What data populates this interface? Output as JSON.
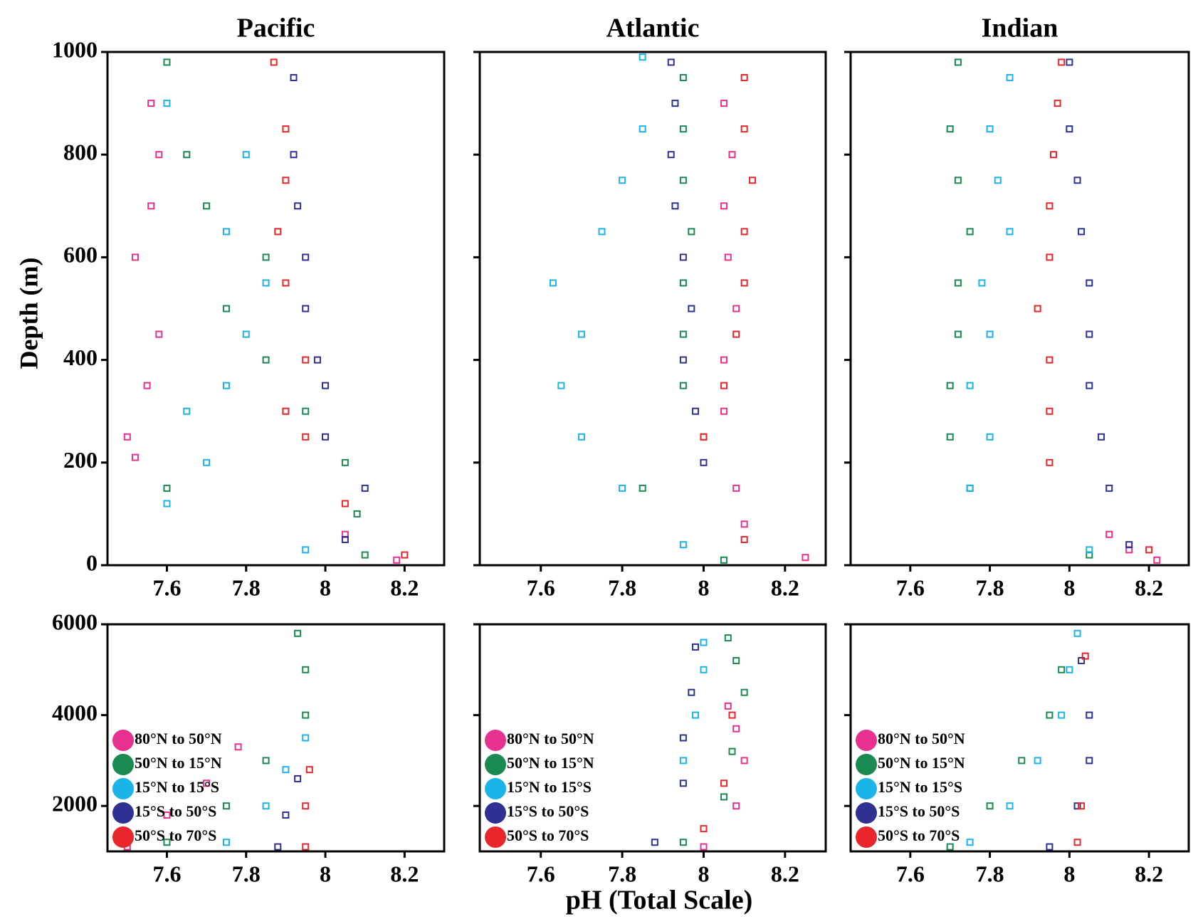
{
  "figure": {
    "xlabel": "pH (Total Scale)",
    "ylabel": "Depth (m)"
  },
  "chart_data": [
    {
      "type": "scatter",
      "title": "Pacific",
      "xlim": [
        7.45,
        8.3
      ],
      "xticks": [
        7.6,
        7.8,
        8,
        8.2
      ],
      "ylim": [
        1000,
        0
      ],
      "yticks": [
        0,
        200,
        400,
        600,
        800,
        1000
      ],
      "series": [
        {
          "color": "#e8318f",
          "x": [
            8.18,
            8.05,
            7.52,
            7.5,
            7.55,
            7.58,
            7.52,
            7.56,
            7.58,
            7.56
          ],
          "values": [
            10,
            60,
            210,
            250,
            350,
            450,
            600,
            700,
            800,
            900
          ]
        },
        {
          "color": "#1a8a50",
          "x": [
            8.1,
            8.08,
            7.6,
            8.05,
            7.95,
            7.85,
            7.75,
            7.85,
            7.7,
            7.65,
            7.6
          ],
          "values": [
            20,
            100,
            150,
            200,
            300,
            400,
            500,
            600,
            700,
            800,
            980
          ]
        },
        {
          "color": "#1ab4e8",
          "x": [
            7.95,
            7.6,
            7.7,
            7.65,
            7.75,
            7.8,
            7.85,
            7.75,
            7.8,
            7.6
          ],
          "values": [
            30,
            120,
            200,
            300,
            350,
            450,
            550,
            650,
            800,
            900
          ]
        },
        {
          "color": "#2e3192",
          "x": [
            8.05,
            8.1,
            8.0,
            8.0,
            7.98,
            7.95,
            7.95,
            7.93,
            7.92,
            7.92
          ],
          "values": [
            50,
            150,
            250,
            350,
            400,
            500,
            600,
            700,
            800,
            950
          ]
        },
        {
          "color": "#e8262c",
          "x": [
            8.2,
            8.05,
            7.95,
            7.9,
            7.95,
            7.9,
            7.88,
            7.9,
            7.9,
            7.87
          ],
          "values": [
            20,
            120,
            250,
            300,
            400,
            550,
            650,
            750,
            850,
            980
          ]
        }
      ]
    },
    {
      "type": "scatter",
      "title": "Atlantic",
      "xlim": [
        7.45,
        8.3
      ],
      "xticks": [
        7.6,
        7.8,
        8,
        8.2
      ],
      "ylim": [
        1000,
        0
      ],
      "yticks": [
        0,
        200,
        400,
        600,
        800,
        1000
      ],
      "series": [
        {
          "color": "#e8318f",
          "x": [
            8.25,
            8.1,
            8.08,
            8.05,
            8.05,
            8.08,
            8.06,
            8.05,
            8.07,
            8.05
          ],
          "values": [
            15,
            80,
            150,
            300,
            400,
            500,
            600,
            700,
            800,
            900
          ]
        },
        {
          "color": "#1a8a50",
          "x": [
            8.05,
            7.85,
            8.0,
            7.95,
            7.95,
            7.95,
            7.97,
            7.95,
            7.95,
            7.95
          ],
          "values": [
            10,
            150,
            250,
            350,
            450,
            550,
            650,
            750,
            850,
            950
          ]
        },
        {
          "color": "#1ab4e8",
          "x": [
            7.95,
            7.8,
            7.7,
            7.65,
            7.7,
            7.63,
            7.75,
            7.8,
            7.85,
            7.85
          ],
          "values": [
            40,
            150,
            250,
            350,
            450,
            550,
            650,
            750,
            850,
            990
          ]
        },
        {
          "color": "#2e3192",
          "x": [
            8.0,
            7.98,
            7.95,
            7.97,
            7.95,
            7.93,
            7.92,
            7.93,
            7.92
          ],
          "values": [
            200,
            300,
            400,
            500,
            600,
            700,
            800,
            900,
            980
          ]
        },
        {
          "color": "#e8262c",
          "x": [
            8.1,
            8.0,
            8.05,
            8.08,
            8.1,
            8.1,
            8.12,
            8.1,
            8.1
          ],
          "values": [
            50,
            250,
            350,
            450,
            550,
            650,
            750,
            850,
            950
          ]
        }
      ]
    },
    {
      "type": "scatter",
      "title": "Indian",
      "xlim": [
        7.45,
        8.3
      ],
      "xticks": [
        7.6,
        7.8,
        8,
        8.2
      ],
      "ylim": [
        1000,
        0
      ],
      "yticks": [
        0,
        200,
        400,
        600,
        800,
        1000
      ],
      "series": [
        {
          "color": "#e8318f",
          "x": [
            8.22,
            8.15,
            8.1
          ],
          "values": [
            10,
            30,
            60
          ]
        },
        {
          "color": "#1a8a50",
          "x": [
            8.05,
            7.75,
            7.7,
            7.7,
            7.72,
            7.72,
            7.75,
            7.72,
            7.7,
            7.72
          ],
          "values": [
            20,
            150,
            250,
            350,
            450,
            550,
            650,
            750,
            850,
            980
          ]
        },
        {
          "color": "#1ab4e8",
          "x": [
            8.05,
            7.75,
            7.8,
            7.75,
            7.8,
            7.78,
            7.85,
            7.82,
            7.8,
            7.85
          ],
          "values": [
            30,
            150,
            250,
            350,
            450,
            550,
            650,
            750,
            850,
            950
          ]
        },
        {
          "color": "#2e3192",
          "x": [
            8.15,
            8.1,
            8.08,
            8.05,
            8.05,
            8.05,
            8.03,
            8.02,
            8.0,
            8.0
          ],
          "values": [
            40,
            150,
            250,
            350,
            450,
            550,
            650,
            750,
            850,
            980
          ]
        },
        {
          "color": "#e8262c",
          "x": [
            8.2,
            7.95,
            7.95,
            7.95,
            7.92,
            7.95,
            7.95,
            7.96,
            7.97,
            7.98
          ],
          "values": [
            30,
            200,
            300,
            400,
            500,
            600,
            700,
            800,
            900,
            980
          ]
        }
      ]
    },
    {
      "type": "scatter",
      "xlim": [
        7.45,
        8.3
      ],
      "xticks": [
        7.6,
        7.8,
        8,
        8.2
      ],
      "ylim": [
        6000,
        1000
      ],
      "yticks": [
        2000,
        4000,
        6000
      ],
      "legend": "lower-left",
      "series": [
        {
          "name": "80°N to 50°N",
          "color": "#e8318f",
          "x": [
            7.5,
            7.6,
            7.7,
            7.78
          ],
          "values": [
            1100,
            1800,
            2500,
            3300
          ]
        },
        {
          "name": "50°N to 15°N",
          "color": "#1a8a50",
          "x": [
            7.6,
            7.75,
            7.85,
            7.95,
            7.95,
            7.93
          ],
          "values": [
            1200,
            2000,
            3000,
            4000,
            5000,
            5800
          ]
        },
        {
          "name": "15°N to 15°S",
          "color": "#1ab4e8",
          "x": [
            7.75,
            7.85,
            7.9,
            7.95
          ],
          "values": [
            1200,
            2000,
            2800,
            3500
          ]
        },
        {
          "name": "15°S to 50°S",
          "color": "#2e3192",
          "x": [
            7.88,
            7.9,
            7.93
          ],
          "values": [
            1100,
            1800,
            2600
          ]
        },
        {
          "name": "50°S to 70°S",
          "color": "#e8262c",
          "x": [
            7.95,
            7.95,
            7.96
          ],
          "values": [
            1100,
            2000,
            2800
          ]
        }
      ]
    },
    {
      "type": "scatter",
      "xlim": [
        7.45,
        8.3
      ],
      "xticks": [
        7.6,
        7.8,
        8,
        8.2
      ],
      "ylim": [
        6000,
        1000
      ],
      "yticks": [
        2000,
        4000,
        6000
      ],
      "legend": "lower-left",
      "series": [
        {
          "name": "80°N to 50°N",
          "color": "#e8318f",
          "x": [
            8.0,
            8.08,
            8.1,
            8.08,
            8.06
          ],
          "values": [
            1100,
            2000,
            3000,
            3700,
            4200
          ]
        },
        {
          "name": "50°N to 15°N",
          "color": "#1a8a50",
          "x": [
            7.95,
            8.05,
            8.07,
            8.1,
            8.08,
            8.06
          ],
          "values": [
            1200,
            2200,
            3200,
            4500,
            5200,
            5700
          ]
        },
        {
          "name": "15°N to 15°S",
          "color": "#1ab4e8",
          "x": [
            7.95,
            7.98,
            8.0,
            8.0
          ],
          "values": [
            3000,
            4000,
            5000,
            5600
          ]
        },
        {
          "name": "15°S to 50°S",
          "color": "#2e3192",
          "x": [
            7.88,
            7.95,
            7.95,
            7.97,
            7.98
          ],
          "values": [
            1200,
            2500,
            3500,
            4500,
            5500
          ]
        },
        {
          "name": "50°S to 70°S",
          "color": "#e8262c",
          "x": [
            8.0,
            8.05,
            8.07
          ],
          "values": [
            1500,
            2500,
            4000
          ]
        }
      ]
    },
    {
      "type": "scatter",
      "xlim": [
        7.45,
        8.3
      ],
      "xticks": [
        7.6,
        7.8,
        8,
        8.2
      ],
      "ylim": [
        6000,
        1000
      ],
      "yticks": [
        2000,
        4000,
        6000
      ],
      "legend": "lower-left",
      "series": [
        {
          "name": "80°N to 50°N",
          "color": "#e8318f",
          "x": [],
          "values": []
        },
        {
          "name": "50°N to 15°N",
          "color": "#1a8a50",
          "x": [
            7.7,
            7.8,
            7.88,
            7.95,
            7.98
          ],
          "values": [
            1100,
            2000,
            3000,
            4000,
            5000
          ]
        },
        {
          "name": "15°N to 15°S",
          "color": "#1ab4e8",
          "x": [
            7.75,
            7.85,
            7.92,
            7.98,
            8.0,
            8.02
          ],
          "values": [
            1200,
            2000,
            3000,
            4000,
            5000,
            5800
          ]
        },
        {
          "name": "15°S to 50°S",
          "color": "#2e3192",
          "x": [
            7.95,
            8.02,
            8.05,
            8.05,
            8.03
          ],
          "values": [
            1100,
            2000,
            3000,
            4000,
            5200
          ]
        },
        {
          "name": "50°S to 70°S",
          "color": "#e8262c",
          "x": [
            8.02,
            8.03,
            8.04
          ],
          "values": [
            1200,
            2000,
            5300
          ]
        }
      ]
    }
  ]
}
